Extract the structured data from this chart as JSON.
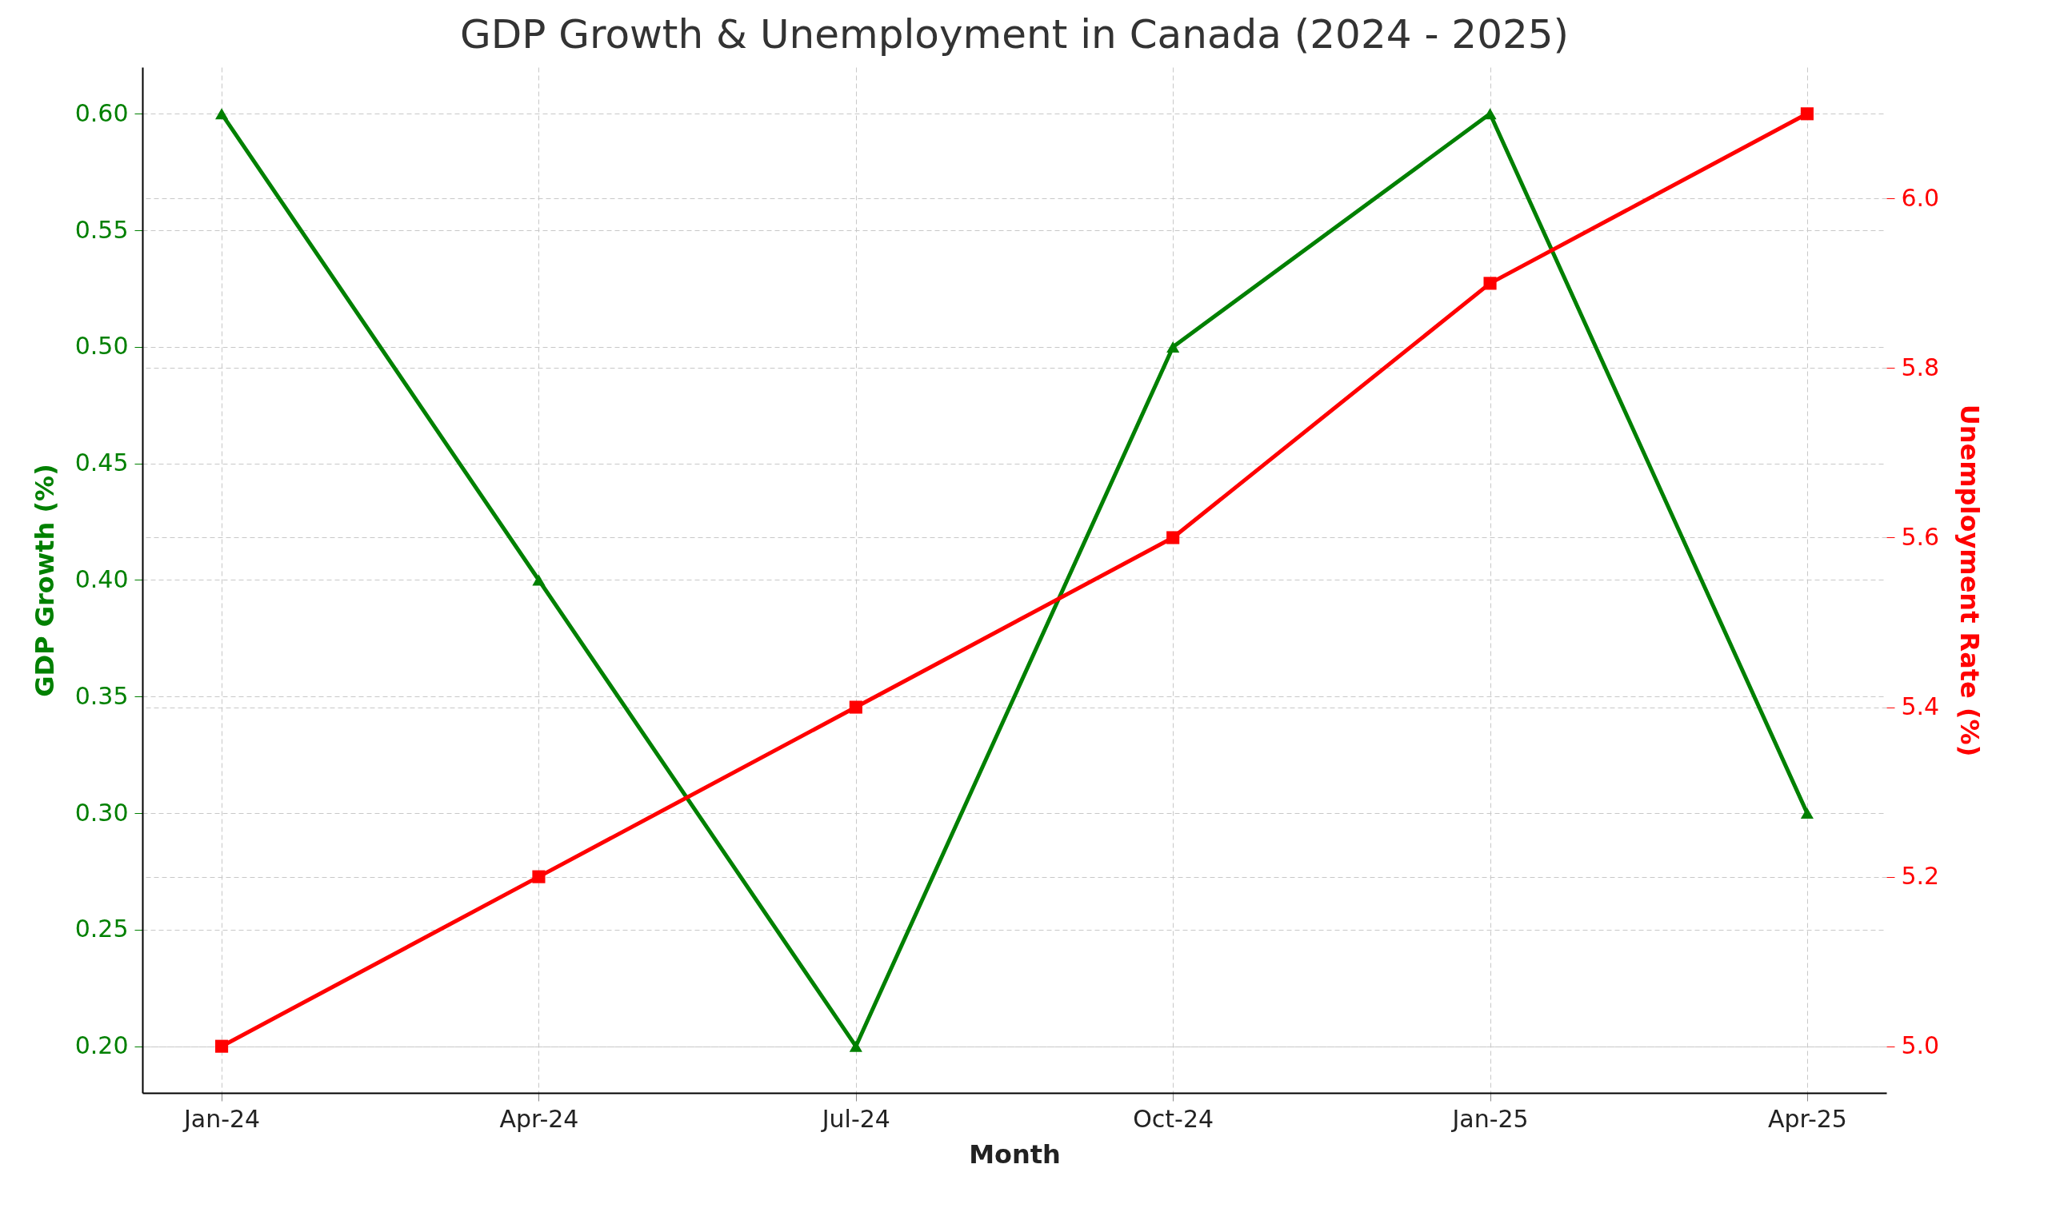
{
  "chart_data": {
    "type": "line",
    "title": "GDP Growth & Unemployment in Canada (2024 - 2025)",
    "xlabel": "Month",
    "ylabel": "GDP Growth (%)",
    "y2label": "Unemployment Rate (%)",
    "categories": [
      "Jan-24",
      "Apr-24",
      "Jul-24",
      "Oct-24",
      "Jan-25",
      "Apr-25"
    ],
    "series": [
      {
        "color": "#008000",
        "marker": "triangle",
        "values": [
          0.6,
          0.4,
          0.2,
          0.5,
          0.6,
          0.3
        ]
      },
      {
        "color": "#ff0000",
        "marker": "square",
        "axis": "y2",
        "values": [
          5.0,
          5.2,
          5.4,
          5.6,
          5.9,
          6.1
        ]
      }
    ],
    "ylim": [
      0.18,
      0.62
    ],
    "yticks": [
      {
        "value": 0.2,
        "label": "0.20"
      },
      {
        "value": 0.25,
        "label": "0.25"
      },
      {
        "value": 0.3,
        "label": "0.30"
      },
      {
        "value": 0.35,
        "label": "0.35"
      },
      {
        "value": 0.4,
        "label": "0.40"
      },
      {
        "value": 0.45,
        "label": "0.45"
      },
      {
        "value": 0.5,
        "label": "0.50"
      },
      {
        "value": 0.55,
        "label": "0.55"
      },
      {
        "value": 0.6,
        "label": "0.60"
      }
    ],
    "y2lim": [
      4.945,
      6.155
    ],
    "y2ticks": [
      {
        "value": 5.0,
        "label": "5.0"
      },
      {
        "value": 5.2,
        "label": "5.2"
      },
      {
        "value": 5.4,
        "label": "5.4"
      },
      {
        "value": 5.6,
        "label": "5.6"
      },
      {
        "value": 5.8,
        "label": "5.8"
      },
      {
        "value": 6.0,
        "label": "6.0"
      }
    ],
    "grid": true,
    "line_style": "solid"
  }
}
